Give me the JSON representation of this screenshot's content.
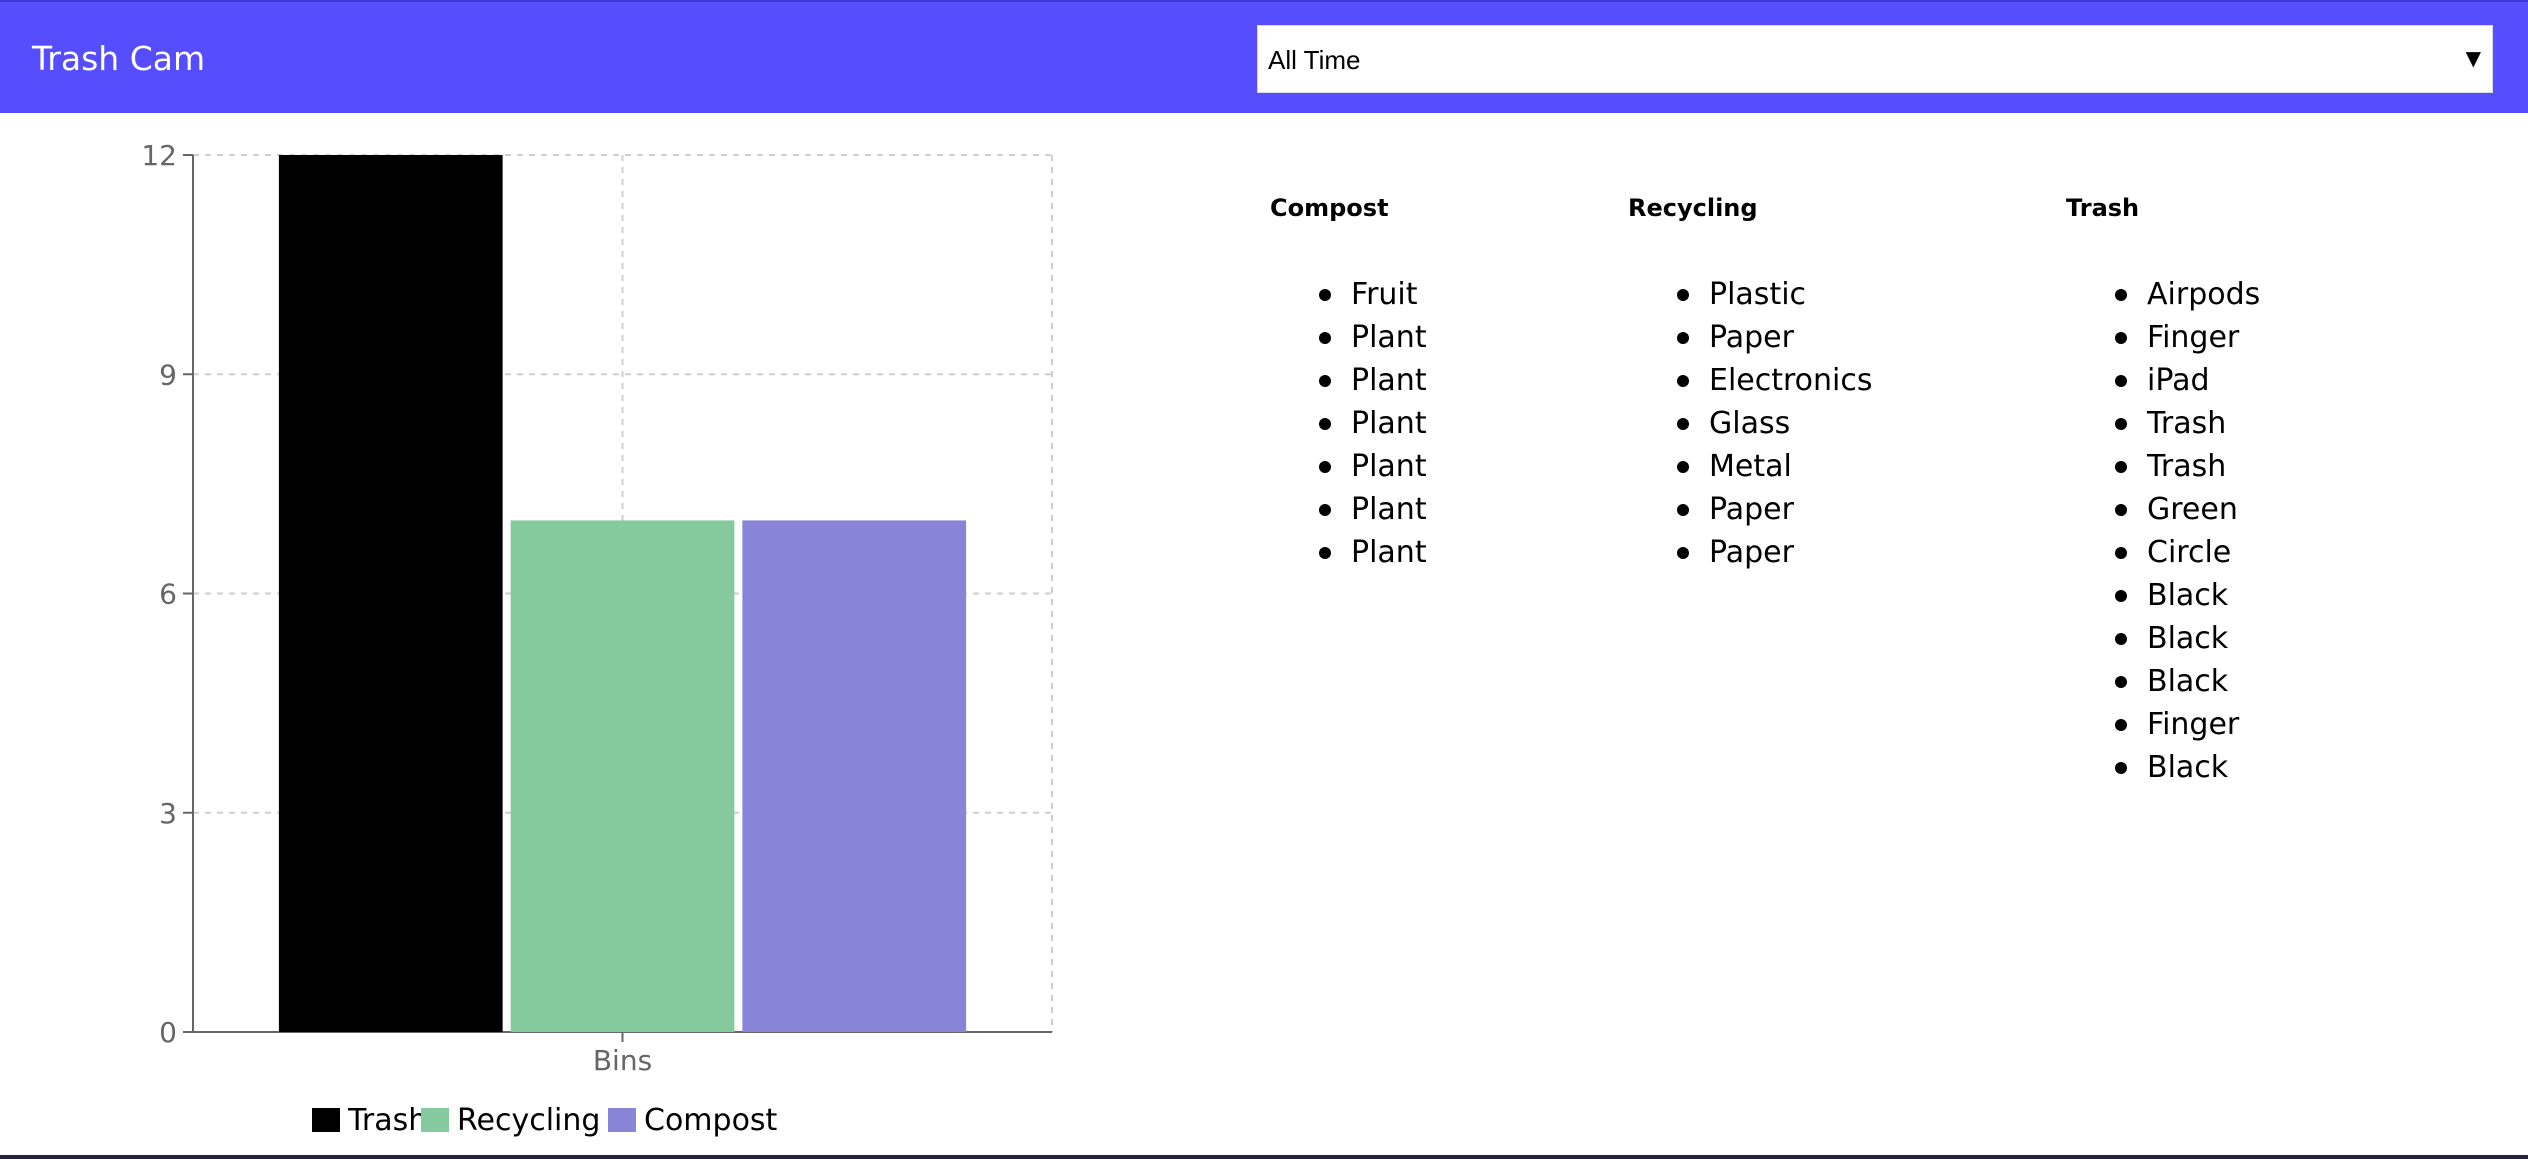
{
  "header": {
    "title": "Trash Cam",
    "time_filter": {
      "selected": "All Time"
    }
  },
  "colors": {
    "header_bg": "#554dfe",
    "trash": "#000000",
    "recycling": "#84ca9c",
    "compost": "#8884d8"
  },
  "chart_data": {
    "type": "bar",
    "categories": [
      "Bins"
    ],
    "series": [
      {
        "name": "Trash",
        "values": [
          12
        ],
        "color": "#000000"
      },
      {
        "name": "Recycling",
        "values": [
          7
        ],
        "color": "#84ca9c"
      },
      {
        "name": "Compost",
        "values": [
          7
        ],
        "color": "#8884d8"
      }
    ],
    "ylim": [
      0,
      12
    ],
    "yticks": [
      0,
      3,
      6,
      9,
      12
    ],
    "grid": true,
    "legend": "bottom"
  },
  "bins": [
    {
      "title": "Compost",
      "items": [
        "Fruit",
        "Plant",
        "Plant",
        "Plant",
        "Plant",
        "Plant",
        "Plant"
      ]
    },
    {
      "title": "Recycling",
      "items": [
        "Plastic",
        "Paper",
        "Electronics",
        "Glass",
        "Metal",
        "Paper",
        "Paper"
      ]
    },
    {
      "title": "Trash",
      "items": [
        "Airpods",
        "Finger",
        "iPad",
        "Trash",
        "Trash",
        "Green",
        "Circle",
        "Black",
        "Black",
        "Black",
        "Finger",
        "Black"
      ]
    }
  ]
}
